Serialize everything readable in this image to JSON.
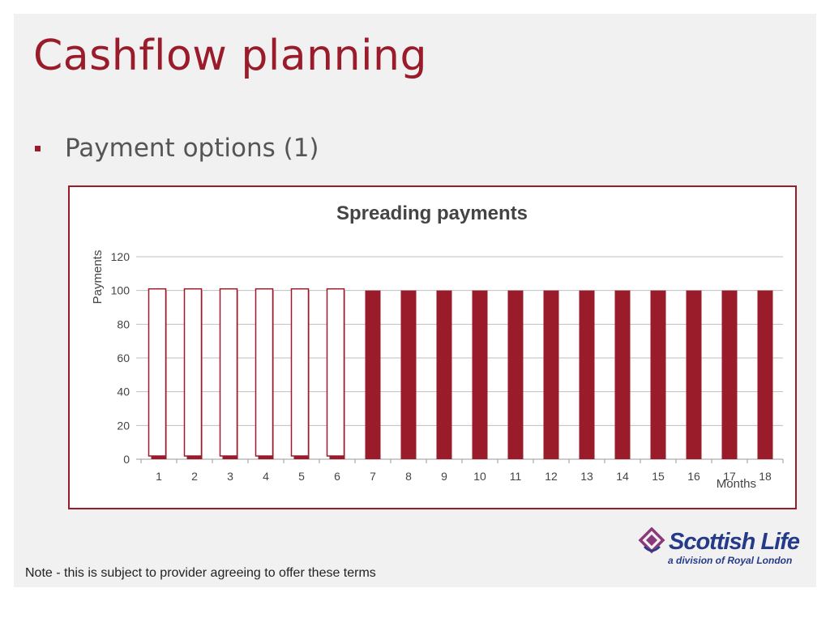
{
  "slide": {
    "title": "Cashflow planning",
    "bullet": "Payment options (1)",
    "note": "Note - this is subject to provider agreeing to offer these terms"
  },
  "logo": {
    "name": "Scottish Life",
    "tagline": "a division of Royal London",
    "icon": "scottish-life-emblem-icon",
    "color": "#263a8a",
    "accent": "#8a3a7a"
  },
  "colors": {
    "accent": "#9a1b2a",
    "bar_fill": "#9a1b2a",
    "bar_outline": "#9a1b2a"
  },
  "chart_data": {
    "type": "bar",
    "title": "Spreading payments",
    "xlabel": "Months",
    "ylabel": "Payments",
    "ylim": [
      0,
      120
    ],
    "yticks": [
      0,
      20,
      40,
      60,
      80,
      100,
      120
    ],
    "grid": true,
    "categories": [
      "1",
      "2",
      "3",
      "4",
      "5",
      "6",
      "7",
      "8",
      "9",
      "10",
      "11",
      "12",
      "13",
      "14",
      "15",
      "16",
      "17",
      "18"
    ],
    "values": [
      100,
      100,
      100,
      100,
      100,
      100,
      100,
      100,
      100,
      100,
      100,
      100,
      100,
      100,
      100,
      100,
      100,
      100
    ],
    "outlined_overlay": [
      1,
      1,
      1,
      1,
      1,
      1,
      0,
      0,
      0,
      0,
      0,
      0,
      0,
      0,
      0,
      0,
      0,
      0
    ]
  }
}
